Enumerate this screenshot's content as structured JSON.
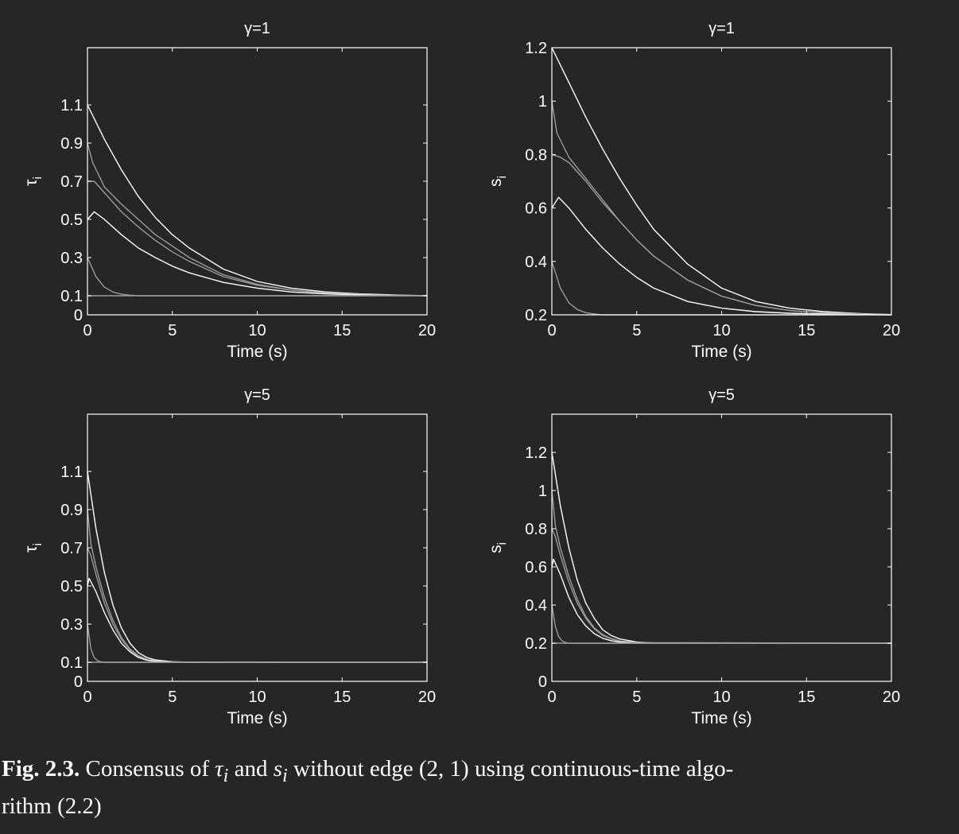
{
  "caption": {
    "label": "Fig. 2.3.",
    "text_1": "Consensus of ",
    "sym_1": "τ",
    "sub_1": "i",
    "text_2": " and ",
    "sym_2": "s",
    "sub_2": "i",
    "text_3": " without edge (2, 1) using continuous-time algo-",
    "text_4": "rithm (2.2)"
  },
  "colors": {
    "background": "#262626",
    "axes": "#ffffff",
    "bright_line": "#ffffff",
    "dim_line": "#9a9a9a"
  },
  "chart_data": [
    {
      "type": "line",
      "title": "γ=1",
      "xlabel": "Time (s)",
      "ylabel": "τi",
      "xlim": [
        0,
        20
      ],
      "ylim": [
        0,
        1.4
      ],
      "xticks": [
        0,
        5,
        10,
        15,
        20
      ],
      "yticks": [
        0,
        0.1,
        0.3,
        0.5,
        0.7,
        0.9,
        1.1
      ],
      "ytick_labels": [
        "0",
        "0.1",
        "0.3",
        "0.5",
        "0.7",
        "0.9",
        "1.1"
      ],
      "grid": false,
      "series": [
        {
          "x": [
            0,
            1,
            2,
            3,
            4,
            5,
            6,
            8,
            10,
            12,
            14,
            16,
            18,
            20
          ],
          "values": [
            1.1,
            0.92,
            0.76,
            0.62,
            0.51,
            0.42,
            0.35,
            0.24,
            0.175,
            0.14,
            0.12,
            0.11,
            0.104,
            0.1
          ]
        },
        {
          "x": [
            0,
            0.3,
            1,
            2,
            3,
            4,
            5,
            6,
            8,
            10,
            12,
            14,
            16,
            18,
            20
          ],
          "values": [
            0.9,
            0.8,
            0.67,
            0.58,
            0.5,
            0.42,
            0.36,
            0.3,
            0.21,
            0.16,
            0.13,
            0.115,
            0.107,
            0.103,
            0.1
          ]
        },
        {
          "x": [
            0,
            0.4,
            1,
            2,
            3,
            4,
            5,
            6,
            8,
            10,
            12,
            14,
            16,
            18,
            20
          ],
          "values": [
            0.7,
            0.7,
            0.64,
            0.54,
            0.46,
            0.39,
            0.33,
            0.28,
            0.2,
            0.155,
            0.13,
            0.114,
            0.106,
            0.103,
            0.1
          ]
        },
        {
          "x": [
            0,
            0.4,
            1,
            2,
            3,
            4,
            5,
            6,
            8,
            10,
            12,
            14,
            16,
            18,
            20
          ],
          "values": [
            0.5,
            0.54,
            0.5,
            0.42,
            0.35,
            0.3,
            0.255,
            0.22,
            0.17,
            0.14,
            0.12,
            0.11,
            0.104,
            0.102,
            0.1
          ]
        },
        {
          "x": [
            0,
            0.5,
            1,
            1.5,
            2,
            2.5,
            3,
            20
          ],
          "values": [
            0.3,
            0.2,
            0.145,
            0.12,
            0.108,
            0.103,
            0.1,
            0.1
          ]
        },
        {
          "x": [
            0,
            20
          ],
          "values": [
            0.1,
            0.1
          ]
        }
      ]
    },
    {
      "type": "line",
      "title": "γ=1",
      "xlabel": "Time (s)",
      "ylabel": "si",
      "xlim": [
        0,
        20
      ],
      "ylim": [
        0.2,
        1.2
      ],
      "xticks": [
        0,
        5,
        10,
        15,
        20
      ],
      "yticks": [
        0.2,
        0.4,
        0.6,
        0.8,
        1,
        1.2
      ],
      "ytick_labels": [
        "0.2",
        "0.4",
        "0.6",
        "0.8",
        "1",
        "1.2"
      ],
      "grid": false,
      "series": [
        {
          "x": [
            0,
            1,
            2,
            3,
            4,
            5,
            6,
            8,
            10,
            12,
            14,
            16,
            18,
            20
          ],
          "values": [
            1.2,
            1.07,
            0.94,
            0.82,
            0.71,
            0.61,
            0.52,
            0.39,
            0.3,
            0.25,
            0.225,
            0.212,
            0.205,
            0.201
          ]
        },
        {
          "x": [
            0,
            0.3,
            1,
            2,
            3,
            4,
            5,
            6,
            8,
            10,
            12,
            14,
            16,
            18,
            20
          ],
          "values": [
            1.0,
            0.88,
            0.79,
            0.71,
            0.63,
            0.55,
            0.48,
            0.42,
            0.33,
            0.27,
            0.235,
            0.216,
            0.207,
            0.203,
            0.2
          ]
        },
        {
          "x": [
            0,
            0.5,
            1,
            2,
            3,
            4,
            5,
            6,
            8,
            10,
            12,
            14,
            16,
            18,
            20
          ],
          "values": [
            0.8,
            0.79,
            0.77,
            0.7,
            0.62,
            0.55,
            0.48,
            0.42,
            0.33,
            0.27,
            0.235,
            0.216,
            0.207,
            0.203,
            0.2
          ]
        },
        {
          "x": [
            0,
            0.4,
            1,
            2,
            3,
            4,
            5,
            6,
            8,
            10,
            12,
            14,
            16,
            18,
            20
          ],
          "values": [
            0.6,
            0.64,
            0.6,
            0.52,
            0.45,
            0.39,
            0.34,
            0.3,
            0.25,
            0.225,
            0.212,
            0.206,
            0.203,
            0.201,
            0.2
          ]
        },
        {
          "x": [
            0,
            0.5,
            1,
            1.5,
            2,
            2.5,
            3,
            20
          ],
          "values": [
            0.4,
            0.3,
            0.245,
            0.22,
            0.208,
            0.203,
            0.2,
            0.2
          ]
        }
      ]
    },
    {
      "type": "line",
      "title": "γ=5",
      "xlabel": "Time (s)",
      "ylabel": "τi",
      "xlim": [
        0,
        20
      ],
      "ylim": [
        0,
        1.4
      ],
      "xticks": [
        0,
        5,
        10,
        15,
        20
      ],
      "yticks": [
        0,
        0.1,
        0.3,
        0.5,
        0.7,
        0.9,
        1.1
      ],
      "ytick_labels": [
        "0",
        "0.1",
        "0.3",
        "0.5",
        "0.7",
        "0.9",
        "1.1"
      ],
      "grid": false,
      "series": [
        {
          "x": [
            0,
            0.5,
            1,
            1.5,
            2,
            2.5,
            3,
            3.5,
            4,
            5,
            6,
            20
          ],
          "values": [
            1.1,
            0.8,
            0.57,
            0.4,
            0.28,
            0.2,
            0.15,
            0.125,
            0.112,
            0.103,
            0.1,
            0.1
          ]
        },
        {
          "x": [
            0,
            0.2,
            0.5,
            1,
            1.5,
            2,
            2.5,
            3,
            3.5,
            4,
            5,
            20
          ],
          "values": [
            0.9,
            0.72,
            0.6,
            0.44,
            0.32,
            0.23,
            0.17,
            0.135,
            0.116,
            0.107,
            0.101,
            0.1
          ]
        },
        {
          "x": [
            0,
            0.2,
            0.5,
            1,
            1.5,
            2,
            2.5,
            3,
            3.5,
            4,
            5,
            20
          ],
          "values": [
            0.7,
            0.66,
            0.56,
            0.41,
            0.3,
            0.22,
            0.165,
            0.13,
            0.114,
            0.106,
            0.101,
            0.1
          ]
        },
        {
          "x": [
            0,
            0.1,
            0.5,
            1,
            1.5,
            2,
            2.5,
            3,
            3.5,
            4,
            5,
            20
          ],
          "values": [
            0.5,
            0.54,
            0.47,
            0.36,
            0.27,
            0.2,
            0.155,
            0.125,
            0.111,
            0.105,
            0.101,
            0.1
          ]
        },
        {
          "x": [
            0,
            0.2,
            0.4,
            0.6,
            0.8,
            1,
            20
          ],
          "values": [
            0.3,
            0.17,
            0.125,
            0.108,
            0.102,
            0.1,
            0.1
          ]
        },
        {
          "x": [
            0,
            20
          ],
          "values": [
            0.1,
            0.1
          ]
        }
      ]
    },
    {
      "type": "line",
      "title": "γ=5",
      "xlabel": "Time (s)",
      "ylabel": "si",
      "xlim": [
        0,
        20
      ],
      "ylim": [
        0,
        1.4
      ],
      "xticks": [
        0,
        5,
        10,
        15,
        20
      ],
      "yticks": [
        0,
        0.2,
        0.4,
        0.6,
        0.8,
        1,
        1.2
      ],
      "ytick_labels": [
        "0",
        "0.2",
        "0.4",
        "0.6",
        "0.8",
        "1",
        "1.2"
      ],
      "grid": false,
      "series": [
        {
          "x": [
            0,
            0.5,
            1,
            1.5,
            2,
            2.5,
            3,
            3.5,
            4,
            5,
            6,
            20
          ],
          "values": [
            1.2,
            0.92,
            0.7,
            0.53,
            0.41,
            0.33,
            0.27,
            0.24,
            0.222,
            0.206,
            0.201,
            0.2
          ]
        },
        {
          "x": [
            0,
            0.2,
            0.5,
            1,
            1.5,
            2,
            2.5,
            3,
            3.5,
            4,
            5,
            20
          ],
          "values": [
            1.0,
            0.82,
            0.7,
            0.55,
            0.43,
            0.34,
            0.28,
            0.245,
            0.224,
            0.212,
            0.203,
            0.2
          ]
        },
        {
          "x": [
            0,
            0.2,
            0.5,
            1,
            1.5,
            2,
            2.5,
            3,
            3.5,
            4,
            5,
            20
          ],
          "values": [
            0.8,
            0.76,
            0.66,
            0.52,
            0.41,
            0.33,
            0.275,
            0.24,
            0.222,
            0.21,
            0.202,
            0.2
          ]
        },
        {
          "x": [
            0,
            0.1,
            0.5,
            1,
            1.5,
            2,
            2.5,
            3,
            3.5,
            4,
            5,
            20
          ],
          "values": [
            0.6,
            0.64,
            0.56,
            0.44,
            0.35,
            0.29,
            0.25,
            0.226,
            0.213,
            0.206,
            0.201,
            0.2
          ]
        },
        {
          "x": [
            0,
            0.2,
            0.4,
            0.6,
            0.8,
            1,
            20
          ],
          "values": [
            0.4,
            0.29,
            0.235,
            0.212,
            0.204,
            0.2,
            0.2
          ]
        },
        {
          "x": [
            0,
            20
          ],
          "values": [
            0.2,
            0.2
          ]
        }
      ]
    }
  ]
}
